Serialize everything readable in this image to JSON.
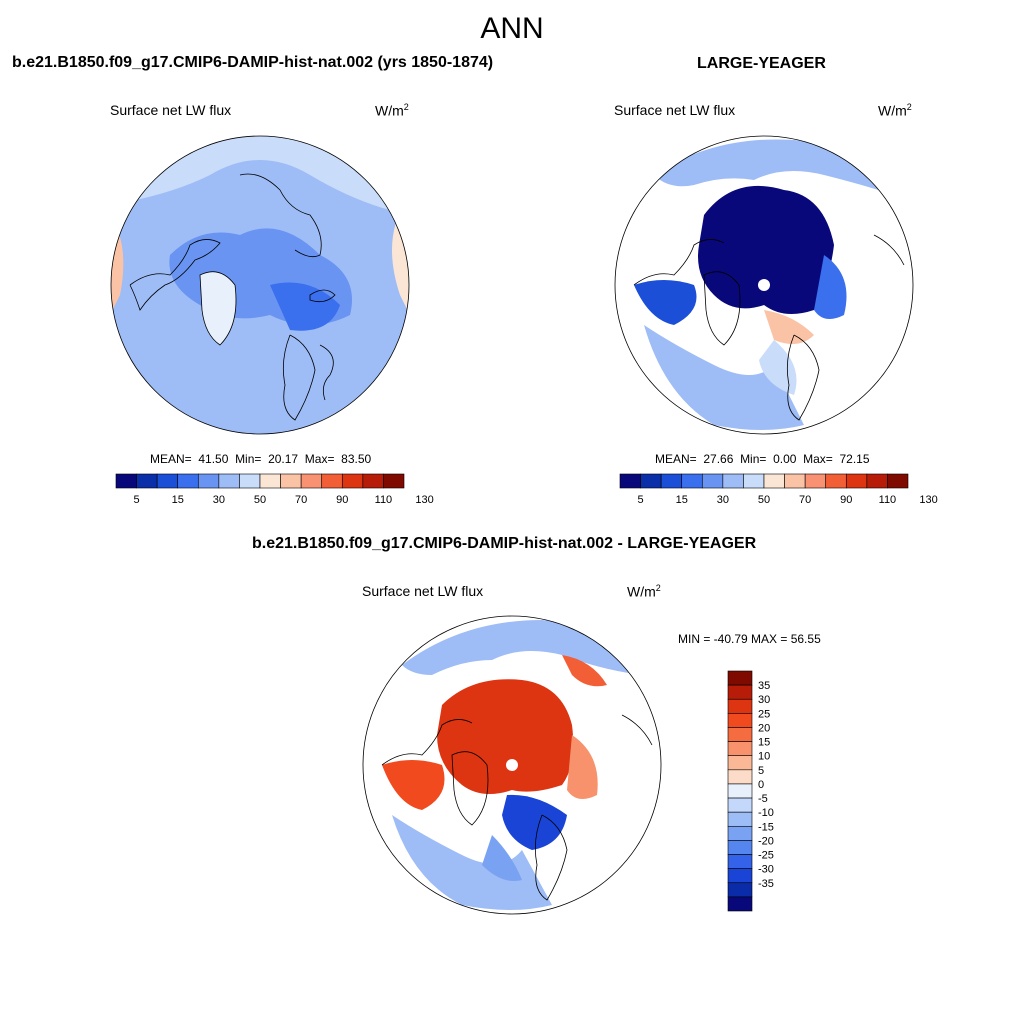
{
  "figure_title": "ANN",
  "panels": [
    {
      "title": "b.e21.B1850.f09_g17.CMIP6-DAMIP-hist-nat.002 (yrs 1850-1874)",
      "variable": "Surface net LW flux",
      "units_base": "W/m",
      "units_exp": "2",
      "mean_label": "MEAN=",
      "mean": "41.50",
      "min_label": "Min=",
      "min": "20.17",
      "max_label": "Max=",
      "max": "83.50"
    },
    {
      "title": "LARGE-YEAGER",
      "variable": "Surface net LW flux",
      "units_base": "W/m",
      "units_exp": "2",
      "mean_label": "MEAN=",
      "mean": "27.66",
      "min_label": "Min=",
      "min": "0.00",
      "max_label": "Max=",
      "max": "72.15"
    },
    {
      "title": "b.e21.B1850.f09_g17.CMIP6-DAMIP-hist-nat.002 - LARGE-YEAGER",
      "variable": "Surface net LW flux",
      "units_base": "W/m",
      "units_exp": "2",
      "minmax_label": "MIN = -40.79 MAX =  56.55"
    }
  ],
  "colorbar_abs": {
    "colors": [
      "#08087a",
      "#0a2fa8",
      "#1b4fd8",
      "#3a6fee",
      "#6994f2",
      "#9ebcf6",
      "#c9dcfa",
      "#fbe6d6",
      "#fbc3a6",
      "#f89272",
      "#f25e36",
      "#dd3411",
      "#b61c07",
      "#7f0a00"
    ],
    "tick_labels": [
      "5",
      "15",
      "30",
      "50",
      "70",
      "90",
      "110",
      "130"
    ]
  },
  "colorbar_diff": {
    "colors": [
      "#7f0a00",
      "#b61c07",
      "#dd3411",
      "#f04a1e",
      "#f56c40",
      "#f8926c",
      "#fbb896",
      "#fcdcc8",
      "#e8f0fc",
      "#c4d8fb",
      "#9cbdf6",
      "#7aa2f2",
      "#5585ef",
      "#3462e8",
      "#1a44d6",
      "#0a2ca8",
      "#08087a"
    ],
    "tick_labels": [
      "35",
      "30",
      "25",
      "20",
      "15",
      "10",
      "5",
      "0",
      "-5",
      "-10",
      "-15",
      "-20",
      "-25",
      "-30",
      "-35"
    ]
  },
  "chart_data": [
    {
      "type": "heatmap",
      "projection": "north polar stereographic",
      "title": "b.e21.B1850.f09_g17.CMIP6-DAMIP-hist-nat.002 (yrs 1850-1874)",
      "variable": "Surface net LW flux",
      "units": "W/m2",
      "stats": {
        "mean": 41.5,
        "min": 20.17,
        "max": 83.5
      },
      "colorbar_levels": [
        5,
        10,
        15,
        20,
        30,
        40,
        50,
        60,
        70,
        80,
        90,
        100,
        110,
        120,
        130
      ]
    },
    {
      "type": "heatmap",
      "projection": "north polar stereographic",
      "title": "LARGE-YEAGER",
      "variable": "Surface net LW flux",
      "units": "W/m2",
      "stats": {
        "mean": 27.66,
        "min": 0.0,
        "max": 72.15
      },
      "colorbar_levels": [
        5,
        10,
        15,
        20,
        30,
        40,
        50,
        60,
        70,
        80,
        90,
        100,
        110,
        120,
        130
      ]
    },
    {
      "type": "heatmap",
      "projection": "north polar stereographic",
      "title": "b.e21.B1850.f09_g17.CMIP6-DAMIP-hist-nat.002 - LARGE-YEAGER",
      "variable": "Surface net LW flux",
      "units": "W/m2",
      "stats": {
        "min": -40.79,
        "max": 56.55
      },
      "colorbar_levels": [
        35,
        30,
        25,
        20,
        15,
        10,
        5,
        0,
        -5,
        -10,
        -15,
        -20,
        -25,
        -30,
        -35
      ]
    }
  ]
}
